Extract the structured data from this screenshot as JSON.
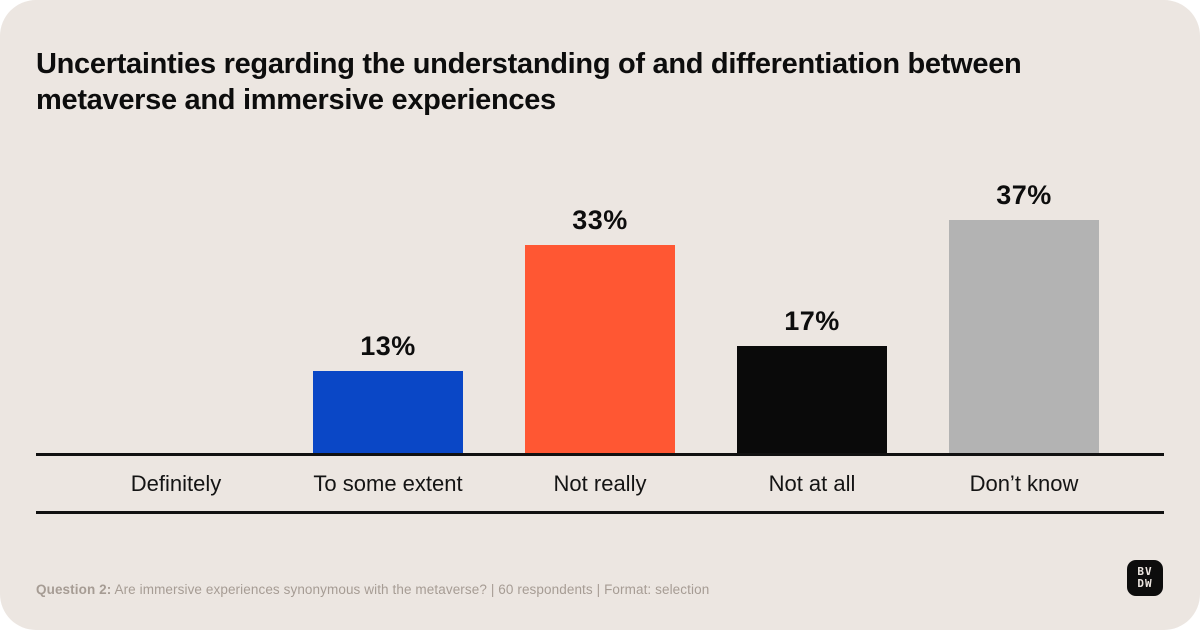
{
  "title": "Uncertainties regarding the understanding of and differentiation between metaverse and immersive experiences",
  "chart_data": {
    "type": "bar",
    "categories": [
      "Definitely",
      "To some extent",
      "Not really",
      "Not at all",
      "Don’t know"
    ],
    "values": [
      0,
      13,
      33,
      17,
      37
    ],
    "value_labels": [
      "",
      "13%",
      "33%",
      "17%",
      "37%"
    ],
    "bar_colors": [
      "#0d0d0d",
      "#0a47c6",
      "#ff5733",
      "#0a0a0a",
      "#b3b3b3"
    ],
    "unit": "%",
    "ylim": [
      0,
      40
    ],
    "grid": false,
    "legend": false,
    "title": "Uncertainties regarding the understanding of and differentiation between metaverse and immersive experiences",
    "xlabel": "",
    "ylabel": ""
  },
  "footer": {
    "question_label": "Question 2:",
    "question_text": "Are immersive experiences synonymous with the metaverse?",
    "meta": "| 60 respondents | Format: selection"
  },
  "logo": {
    "line1": "BV",
    "line2": "DW"
  },
  "colors": {
    "card_background": "#ece6e1",
    "text": "#0d0d0d",
    "footer_text": "#a69c94",
    "axis": "#111111",
    "bar_blue": "#0a47c6",
    "bar_orange": "#ff5733",
    "bar_black": "#0a0a0a",
    "bar_gray": "#b3b3b3"
  }
}
